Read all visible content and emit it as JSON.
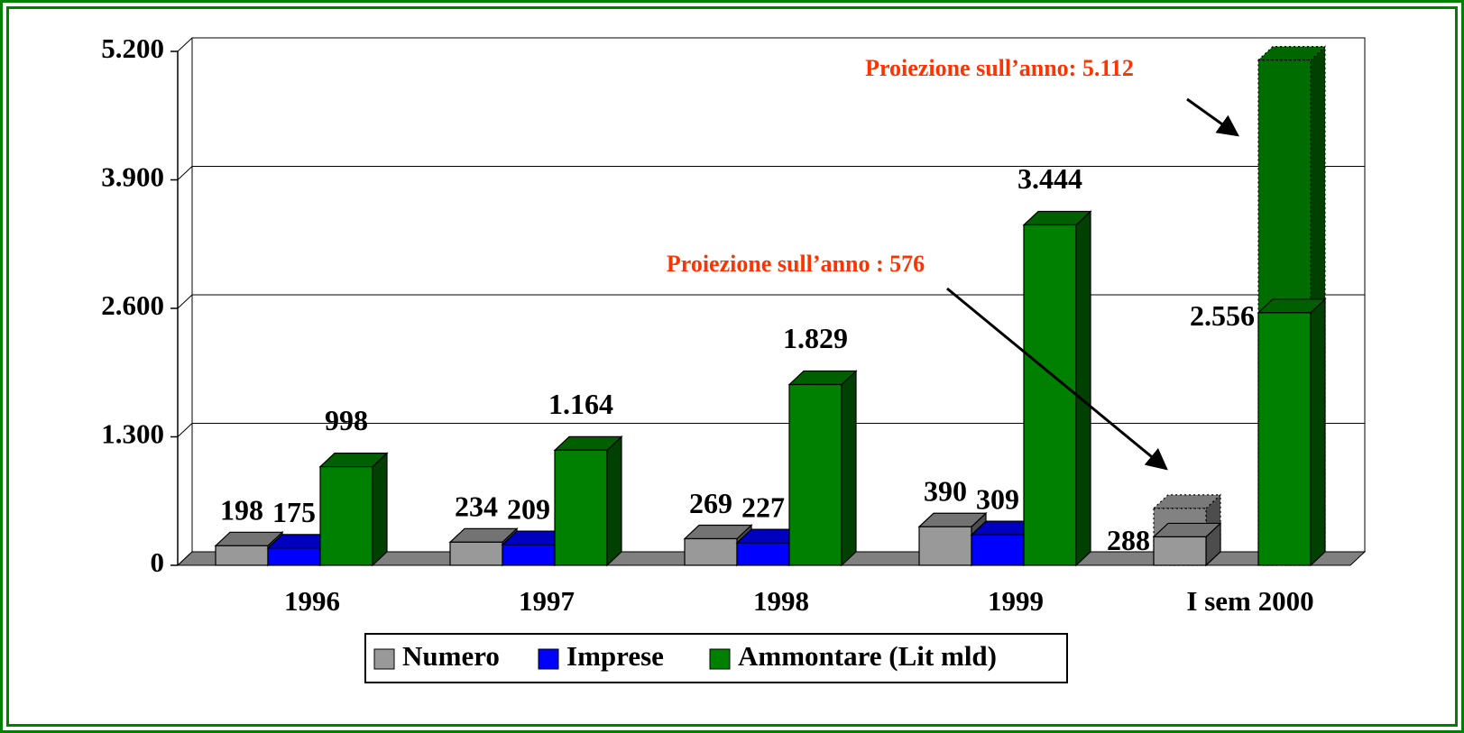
{
  "chart_data": {
    "type": "bar3d",
    "categories": [
      "1996",
      "1997",
      "1998",
      "1999",
      "I sem 2000"
    ],
    "series": [
      {
        "name": "Numero",
        "color": "#999999",
        "values": [
          198,
          234,
          269,
          390,
          288
        ],
        "projection_values": [
          null,
          null,
          null,
          null,
          576
        ],
        "projection_label": "Proiezione sull’anno : 576"
      },
      {
        "name": "Imprese",
        "color": "#0000ff",
        "values": [
          175,
          209,
          227,
          309,
          null
        ]
      },
      {
        "name": "Ammontare (Lit mld)",
        "color": "#008000",
        "values": [
          998,
          1164,
          1829,
          3444,
          2556
        ],
        "value_labels": [
          "998",
          "1.164",
          "1.829",
          "3.444",
          "2.556"
        ],
        "projection_values": [
          null,
          null,
          null,
          null,
          5112
        ],
        "projection_label": "Proiezione sull’anno: 5.112"
      }
    ],
    "ylim": [
      0,
      5200
    ],
    "yticks": [
      0,
      {
        "value": 1300,
        "label": "1.300"
      },
      {
        "value": 2600,
        "label": "2.600"
      },
      {
        "value": 3900,
        "label": "3.900"
      },
      {
        "value": 5200,
        "label": "5.200"
      }
    ],
    "grid": true,
    "annotation_color": "#ff3300"
  }
}
